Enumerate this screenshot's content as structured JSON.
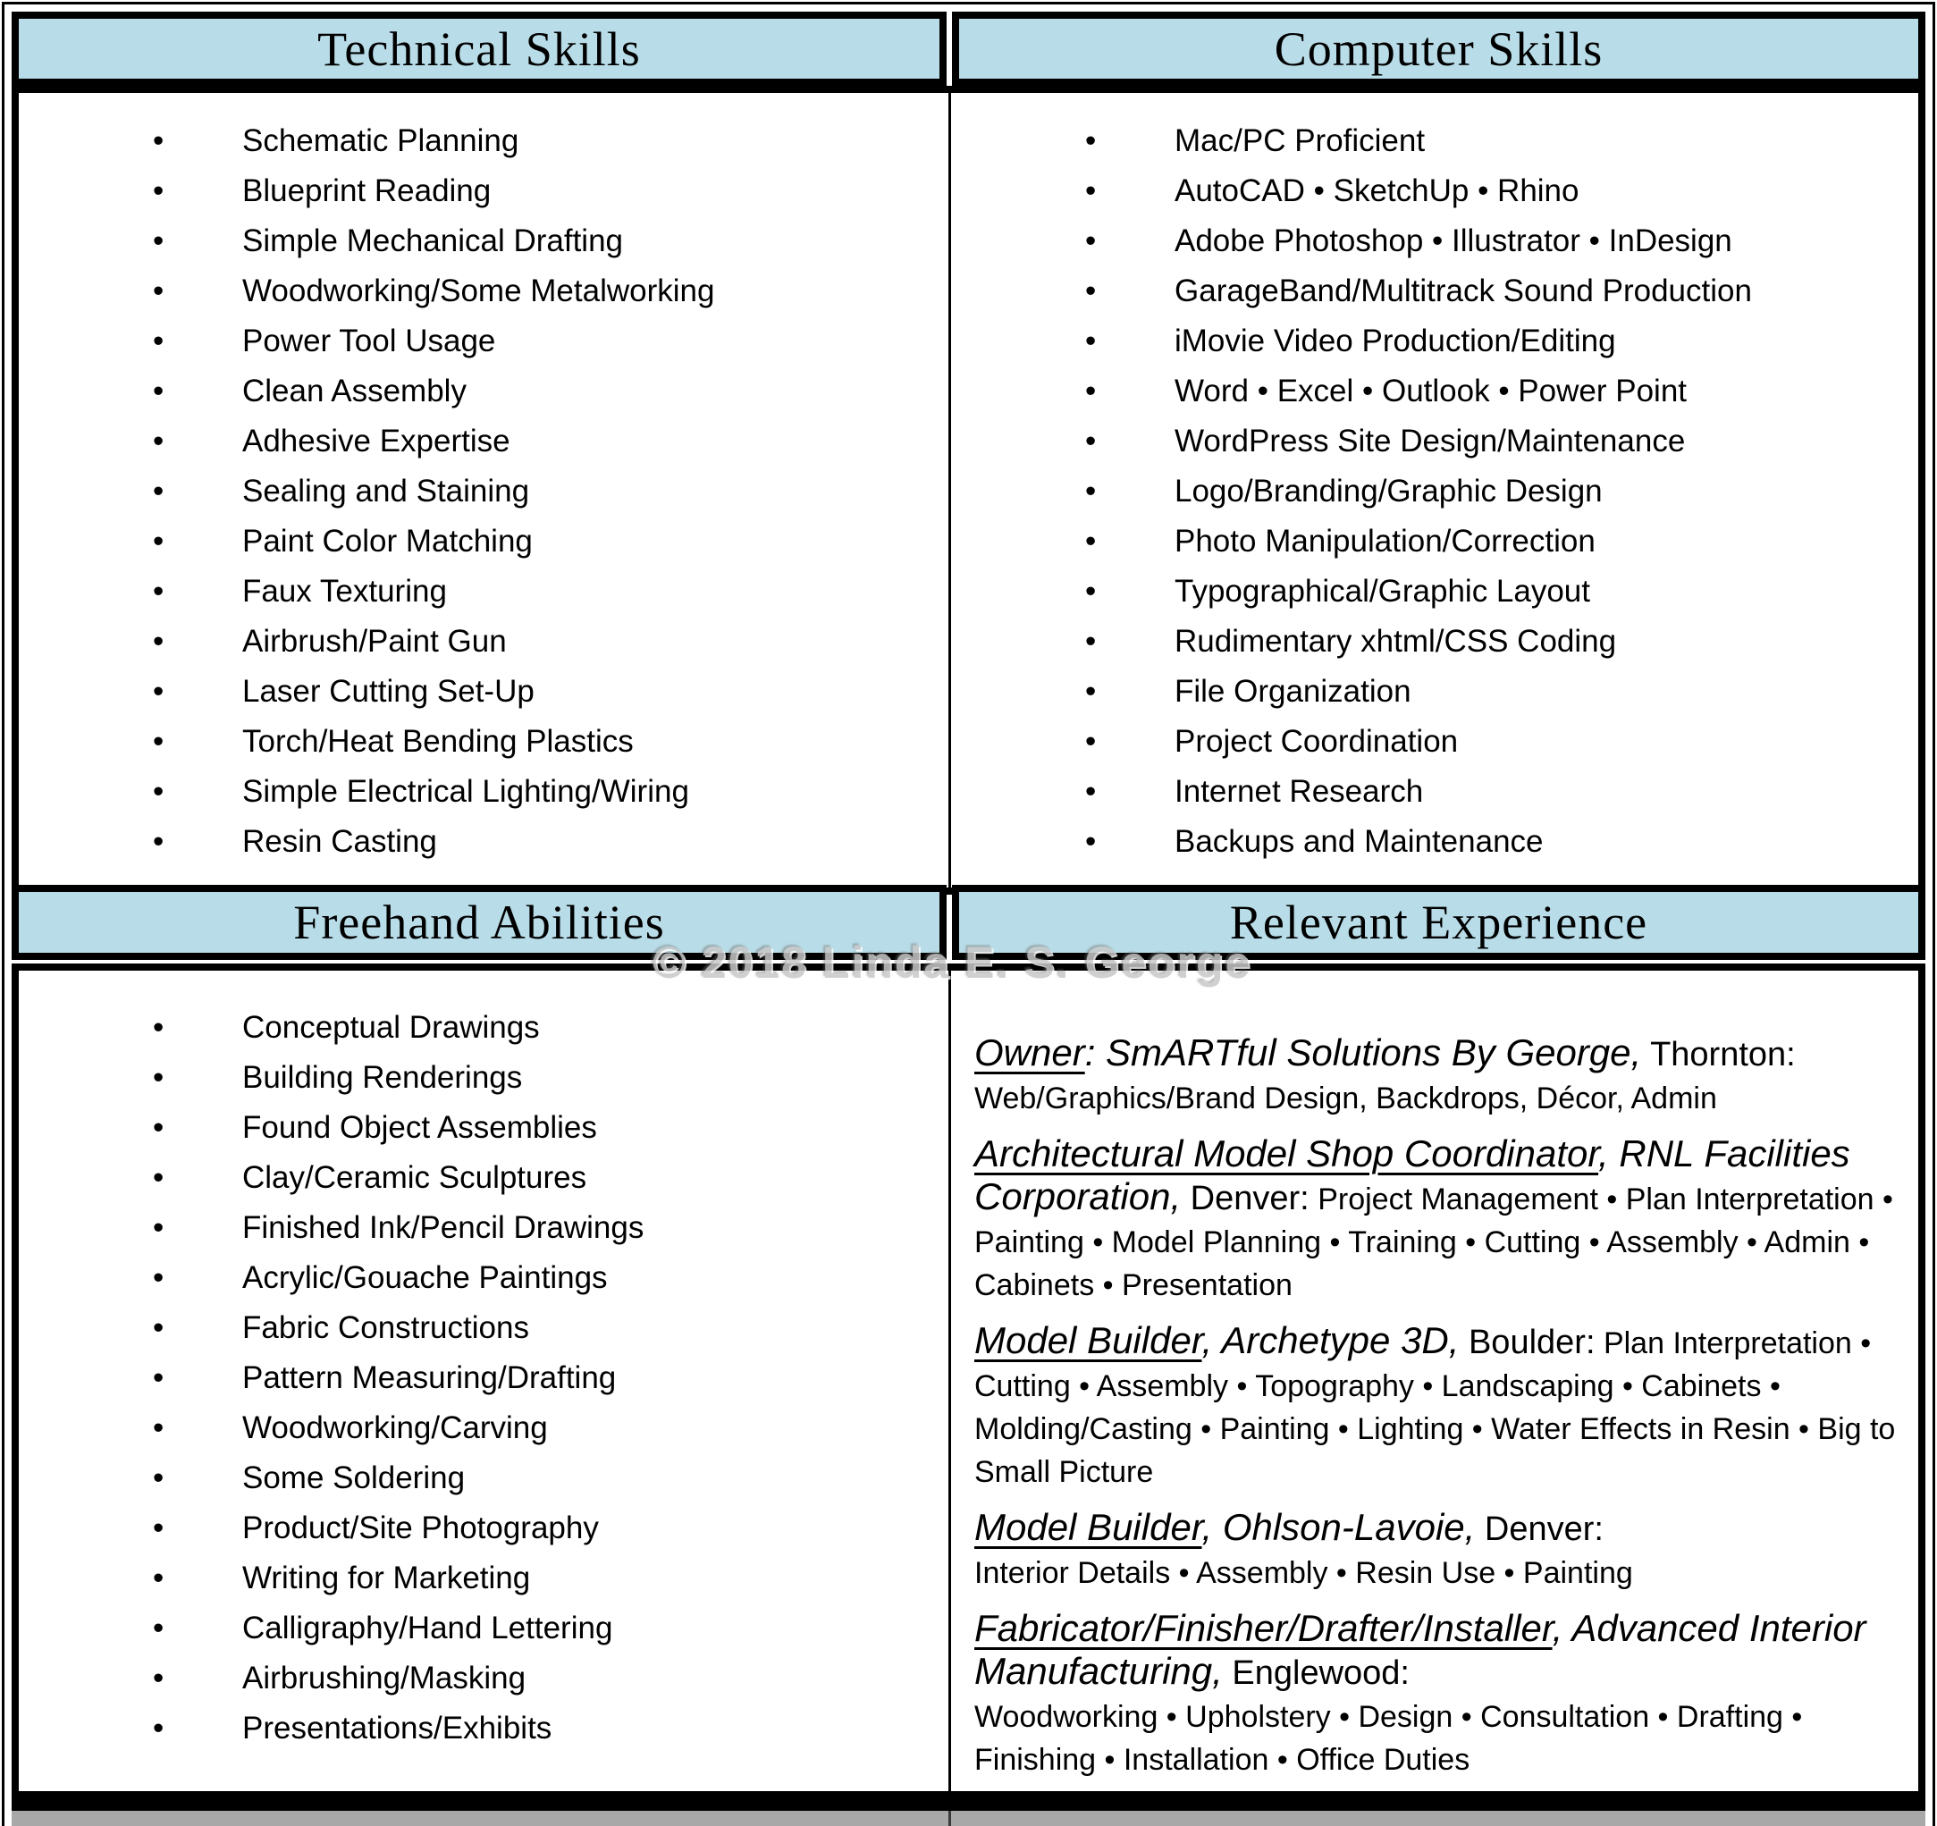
{
  "watermark": "© 2018 Linda E. S. George",
  "glyphs": {
    "bullet": "•"
  },
  "colors": {
    "header_bg": "#b9dde8",
    "border": "#000000",
    "watermark": "#c8c8c8",
    "footer_gray": "#a8a8a8"
  },
  "sections": {
    "technical": {
      "title": "Technical Skills",
      "items": [
        "Schematic Planning",
        "Blueprint Reading",
        "Simple Mechanical Drafting",
        "Woodworking/Some Metalworking",
        "Power Tool Usage",
        "Clean Assembly",
        "Adhesive Expertise",
        "Sealing and Staining",
        "Paint Color Matching",
        "Faux Texturing",
        "Airbrush/Paint Gun",
        "Laser Cutting Set-Up",
        "Torch/Heat Bending Plastics",
        "Simple Electrical Lighting/Wiring",
        "Resin Casting"
      ]
    },
    "computer": {
      "title": "Computer Skills",
      "items": [
        "Mac/PC Proficient",
        "AutoCAD • SketchUp • Rhino",
        "Adobe Photoshop • Illustrator • InDesign",
        "GarageBand/Multitrack Sound Production",
        "iMovie Video Production/Editing",
        "Word • Excel • Outlook • Power Point",
        "WordPress Site Design/Maintenance",
        "Logo/Branding/Graphic Design",
        "Photo Manipulation/Correction",
        "Typographical/Graphic Layout",
        "Rudimentary xhtml/CSS Coding",
        "File Organization",
        "Project Coordination",
        "Internet Research",
        "Backups and Maintenance"
      ]
    },
    "freehand": {
      "title": "Freehand Abilities",
      "items": [
        "Conceptual Drawings",
        "Building Renderings",
        "Found Object Assemblies",
        "Clay/Ceramic Sculptures",
        "Finished Ink/Pencil Drawings",
        "Acrylic/Gouache Paintings",
        "Fabric Constructions",
        "Pattern Measuring/Drafting",
        "Woodworking/Carving",
        "Some Soldering",
        "Product/Site Photography",
        "Writing for Marketing",
        "Calligraphy/Hand Lettering",
        "Airbrushing/Masking",
        "Presentations/Exhibits"
      ]
    },
    "experience": {
      "title": "Relevant Experience",
      "jobs": [
        {
          "role": "Owner",
          "sep": ": ",
          "org": "SmARTful Solutions By George,",
          "place": "Thornton:",
          "details": "\nWeb/Graphics/Brand Design, Backdrops, Décor, Admin"
        },
        {
          "role": "Architectural Model Shop Coordinator",
          "sep": ", ",
          "org": "RNL Facilities Corporation,",
          "place": "Denver:",
          "details": " Project Management • Plan Interpretation • Painting • Model Planning • Training • Cutting • Assembly • Admin • Cabinets • Presentation"
        },
        {
          "role": "Model Builder",
          "sep": ", ",
          "org": "Archetype 3D,",
          "place": "Boulder:",
          "details": " Plan Interpretation • Cutting • Assembly • Topography • Landscaping • Cabinets • Molding/Casting • Painting • Lighting • Water Effects in Resin • Big to Small Picture"
        },
        {
          "role": "Model Builder",
          "sep": ", ",
          "org": "Ohlson-Lavoie,",
          "place": "Denver:",
          "details": "\nInterior Details • Assembly • Resin Use • Painting"
        },
        {
          "role": "Fabricator/Finisher/Drafter/Installer",
          "sep": ", ",
          "org": "Advanced Interior Manufacturing,",
          "place": "Englewood:",
          "details": "\nWoodworking • Upholstery • Design • Consultation • Drafting • Finishing • Installation • Office Duties"
        }
      ]
    }
  }
}
